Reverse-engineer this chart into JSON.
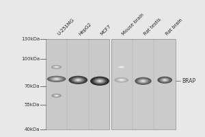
{
  "fig_width": 3.0,
  "fig_height": 2.0,
  "dpi": 100,
  "bg_color": "#e8e8e8",
  "lane_labels": [
    "U-251MG",
    "HepG2",
    "MCF7",
    "Mouse brain",
    "Rat testis",
    "Rat brain"
  ],
  "mw_markers": [
    "130kDa",
    "100kDa",
    "70kDa",
    "55kDa",
    "40kDa"
  ],
  "mw_positions": [
    130,
    100,
    70,
    55,
    40
  ],
  "brap_label": "BRAP",
  "label_fontsize": 5,
  "mw_fontsize": 5
}
